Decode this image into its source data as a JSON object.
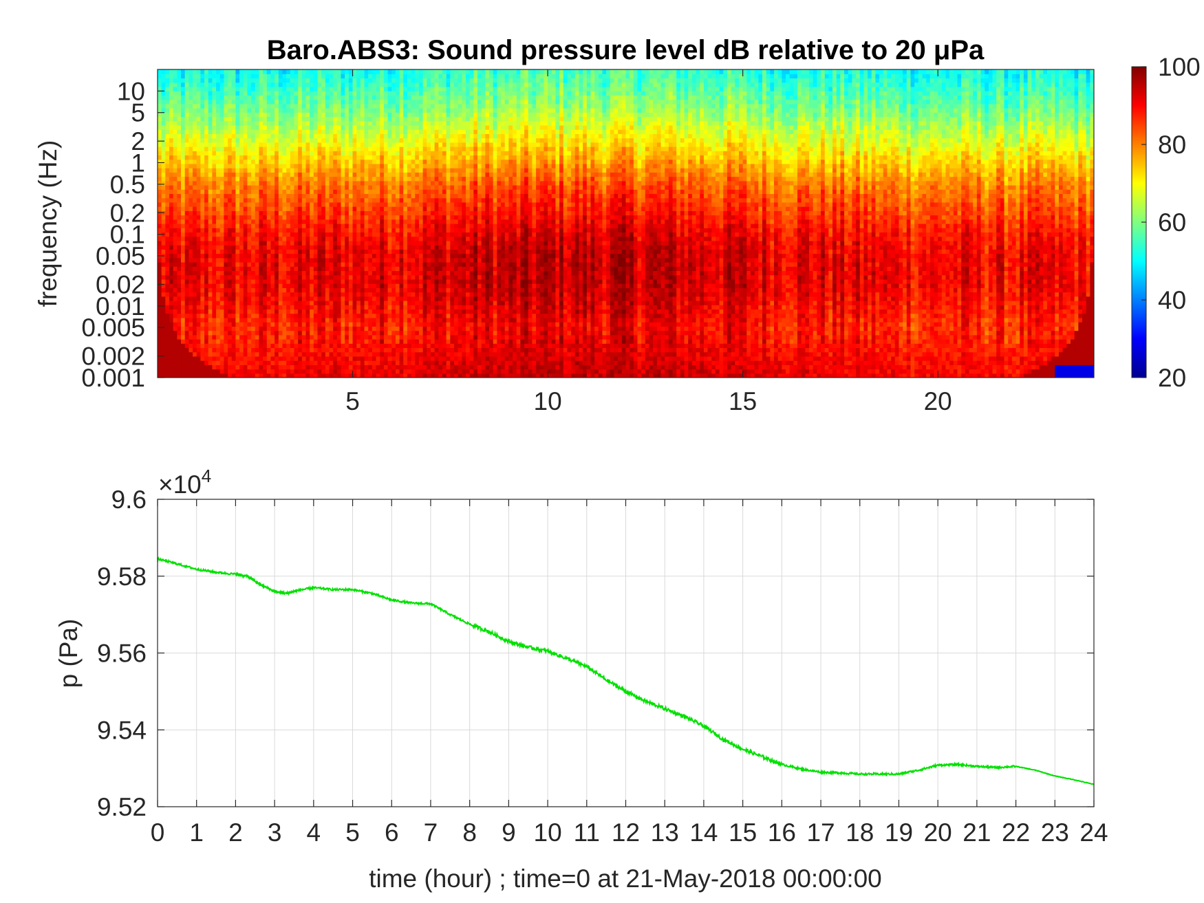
{
  "colors": {
    "axis": "#262626",
    "grid": "#d9d9d9",
    "pressure_line": "#00e000",
    "background": "#ffffff"
  },
  "chart_data": [
    {
      "type": "heatmap",
      "title": "Baro.ABS3: Sound pressure level dB relative to 20 μPa",
      "xlabel": "",
      "ylabel": "frequency (Hz)",
      "x_ticks": [
        5,
        10,
        15,
        20
      ],
      "x_range": [
        0,
        24
      ],
      "y_scale": "log",
      "y_ticks": [
        {
          "value": 0.001,
          "label": "0.001"
        },
        {
          "value": 0.002,
          "label": "0.002"
        },
        {
          "value": 0.005,
          "label": "0.005"
        },
        {
          "value": 0.01,
          "label": "0.01"
        },
        {
          "value": 0.02,
          "label": "0.02"
        },
        {
          "value": 0.05,
          "label": "0.05"
        },
        {
          "value": 0.1,
          "label": "0.1"
        },
        {
          "value": 0.2,
          "label": "0.2"
        },
        {
          "value": 0.5,
          "label": "0.5"
        },
        {
          "value": 1,
          "label": "1"
        },
        {
          "value": 2,
          "label": "2"
        },
        {
          "value": 5,
          "label": "5"
        },
        {
          "value": 10,
          "label": "10"
        }
      ],
      "y_range": [
        0.001,
        20
      ],
      "colormap": "jet",
      "colorbar": {
        "range": [
          20,
          100
        ],
        "ticks": [
          "100",
          "80",
          "60",
          "40",
          "20"
        ]
      },
      "approx_level_profile": {
        "frequency_hz": [
          0.001,
          0.002,
          0.005,
          0.01,
          0.02,
          0.05,
          0.1,
          0.2,
          0.5,
          1,
          2,
          5,
          10,
          20
        ],
        "level_db": [
          90,
          88,
          86,
          88,
          90,
          90,
          88,
          84,
          79,
          73,
          67,
          59,
          54,
          50
        ]
      },
      "grid": false
    },
    {
      "type": "line",
      "title": "",
      "xlabel": "time (hour) ; time=0 at 21-May-2018 00:00:00",
      "ylabel": "p (Pa)",
      "y_exponent_label": "×10",
      "y_exponent_power": "4",
      "x_ticks": [
        "0",
        "1",
        "2",
        "3",
        "4",
        "5",
        "6",
        "7",
        "8",
        "9",
        "10",
        "11",
        "12",
        "13",
        "14",
        "15",
        "16",
        "17",
        "18",
        "19",
        "20",
        "21",
        "22",
        "23",
        "24"
      ],
      "y_ticks": [
        "9.6",
        "9.58",
        "9.56",
        "9.54",
        "9.52"
      ],
      "xlim": [
        0,
        24
      ],
      "ylim": [
        95200,
        96000
      ],
      "grid": true,
      "series": [
        {
          "x": [
            0,
            0.5,
            1,
            1.5,
            2,
            2.3,
            2.6,
            3,
            3.3,
            3.6,
            4,
            4.5,
            5,
            5.5,
            6,
            6.5,
            7,
            7.5,
            8,
            8.5,
            9,
            9.5,
            10,
            10.5,
            11,
            11.5,
            12,
            12.5,
            13,
            13.5,
            14,
            14.5,
            15,
            15.5,
            16,
            16.5,
            17,
            17.5,
            18,
            18.5,
            19,
            19.5,
            20,
            20.5,
            21,
            21.5,
            22,
            22.5,
            23,
            23.5,
            24
          ],
          "y": [
            95845,
            95832,
            95818,
            95810,
            95805,
            95800,
            95780,
            95760,
            95755,
            95763,
            95770,
            95765,
            95765,
            95755,
            95738,
            95730,
            95728,
            95700,
            95675,
            95655,
            95630,
            95615,
            95605,
            95585,
            95565,
            95530,
            95500,
            95475,
            95455,
            95435,
            95410,
            95375,
            95350,
            95330,
            95310,
            95298,
            95290,
            95288,
            95285,
            95285,
            95285,
            95295,
            95308,
            95310,
            95305,
            95302,
            95305,
            95295,
            95280,
            95270,
            95258
          ]
        }
      ]
    }
  ]
}
